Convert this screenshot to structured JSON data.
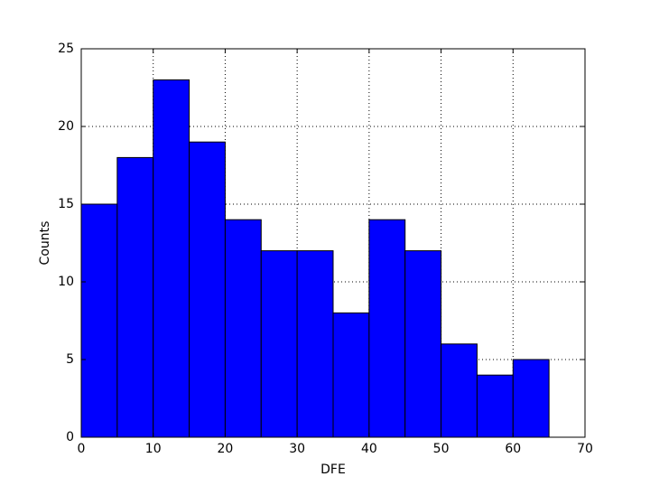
{
  "chart_data": {
    "type": "histogram",
    "xlabel": "DFE",
    "ylabel": "Counts",
    "bins": [
      0,
      5,
      10,
      15,
      20,
      25,
      30,
      35,
      40,
      45,
      50,
      55,
      60,
      65
    ],
    "values": [
      15,
      18,
      23,
      19,
      14,
      12,
      12,
      8,
      14,
      12,
      6,
      4,
      5
    ],
    "color": "#0000ff",
    "xlim": [
      0,
      70
    ],
    "xticks": [
      0,
      10,
      20,
      30,
      40,
      50,
      60,
      70
    ],
    "ylim": [
      0,
      25
    ],
    "yticks": [
      0,
      5,
      10,
      15,
      20,
      25
    ],
    "grid": true
  }
}
